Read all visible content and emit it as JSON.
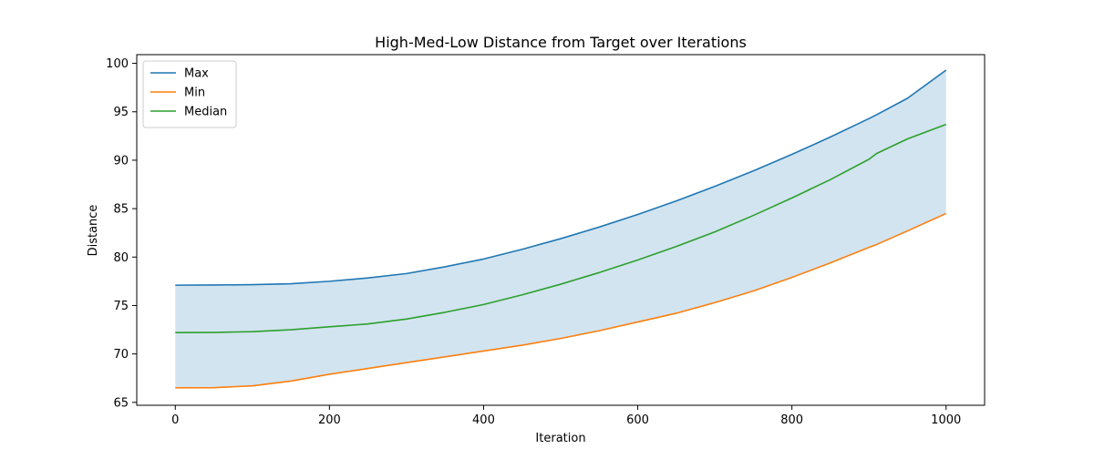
{
  "chart_data": {
    "type": "line",
    "title": "High-Med-Low Distance from Target over Iterations",
    "xlabel": "Iteration",
    "ylabel": "Distance",
    "xlim": [
      -50,
      1050
    ],
    "ylim": [
      64.7,
      100.9
    ],
    "xticks": [
      0,
      200,
      400,
      600,
      800,
      1000
    ],
    "yticks": [
      65,
      70,
      75,
      80,
      85,
      90,
      95,
      100
    ],
    "grid": false,
    "legend_position": "top-left",
    "fill_between": {
      "upper": "Max",
      "lower": "Min",
      "color": "#1f77b4",
      "opacity": 0.2
    },
    "x": [
      0,
      50,
      100,
      150,
      200,
      250,
      300,
      350,
      400,
      450,
      500,
      550,
      600,
      650,
      700,
      750,
      800,
      850,
      900,
      910,
      950,
      1000
    ],
    "series": [
      {
        "name": "Max",
        "color": "#1f77b4",
        "values": [
          77.1,
          77.12,
          77.15,
          77.25,
          77.5,
          77.85,
          78.3,
          79.0,
          79.8,
          80.8,
          81.9,
          83.1,
          84.4,
          85.8,
          87.3,
          88.9,
          90.6,
          92.4,
          94.3,
          94.7,
          96.4,
          99.3
        ]
      },
      {
        "name": "Min",
        "color": "#ff7f0e",
        "values": [
          66.5,
          66.52,
          66.7,
          67.2,
          67.9,
          68.5,
          69.1,
          69.7,
          70.3,
          70.9,
          71.6,
          72.4,
          73.3,
          74.2,
          75.3,
          76.5,
          77.9,
          79.4,
          81.0,
          81.3,
          82.7,
          84.5
        ]
      },
      {
        "name": "Median",
        "color": "#2ca02c",
        "values": [
          72.2,
          72.22,
          72.3,
          72.5,
          72.8,
          73.1,
          73.6,
          74.3,
          75.1,
          76.1,
          77.2,
          78.4,
          79.7,
          81.1,
          82.6,
          84.3,
          86.1,
          88.0,
          90.1,
          90.7,
          92.2,
          93.7
        ]
      }
    ]
  }
}
